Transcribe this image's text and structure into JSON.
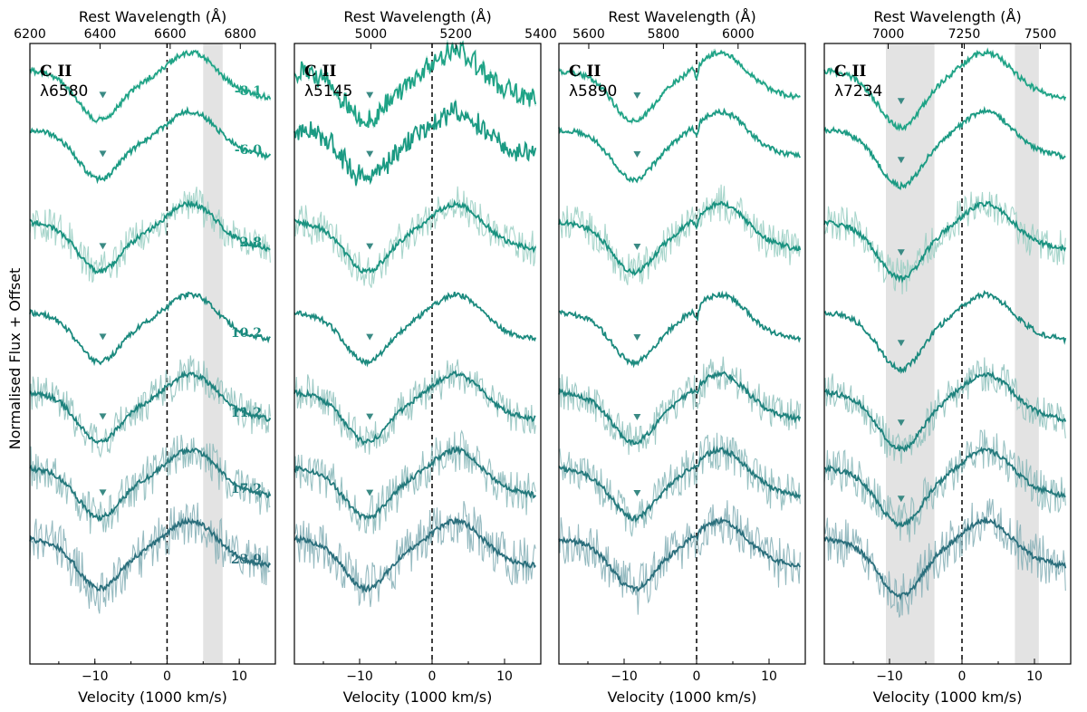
{
  "figure": {
    "ylabel": "Normalised Flux + Offset"
  },
  "chart_data": [
    {
      "type": "line",
      "ion": "C II",
      "line_label": "λ6580",
      "xlabel": "Velocity (1000 km/s)",
      "top_xlabel": "Rest Wavelength (Å)",
      "xlim": [
        -19,
        15
      ],
      "x_ticks": [
        -10,
        0,
        10
      ],
      "top_xlim": [
        6200,
        6900
      ],
      "top_ticks": [
        6200,
        6400,
        6600,
        6800
      ],
      "shade": [
        [
          5,
          7.7
        ]
      ],
      "trough_velocity": -9.5,
      "epochs": [
        "-8.1",
        "-6.0",
        "2.8",
        "10.2",
        "11.2",
        "17.2",
        "23.9"
      ]
    },
    {
      "type": "line",
      "ion": "C II",
      "line_label": "λ5145",
      "xlabel": "Velocity (1000 km/s)",
      "top_xlabel": "Rest Wavelength (Å)",
      "xlim": [
        -19,
        15
      ],
      "x_ticks": [
        -10,
        0,
        10
      ],
      "top_xlim": [
        4820,
        5400
      ],
      "top_ticks": [
        5000,
        5200,
        5400
      ],
      "shade": [],
      "trough_velocity": -9.2,
      "epochs": [
        "-8.1",
        "-6.0",
        "2.8",
        "10.2",
        "11.2",
        "17.2",
        "23.9"
      ]
    },
    {
      "type": "line",
      "ion": "C II",
      "line_label": "λ5890",
      "xlabel": "Velocity (1000 km/s)",
      "top_xlabel": "Rest Wavelength (Å)",
      "xlim": [
        -19,
        15
      ],
      "x_ticks": [
        -10,
        0,
        10
      ],
      "top_xlim": [
        5520,
        6180
      ],
      "top_ticks": [
        5600,
        5800,
        6000
      ],
      "shade": [],
      "trough_velocity": -8.8,
      "epochs": [
        "-8.1",
        "-6.0",
        "2.8",
        "10.2",
        "11.2",
        "17.2",
        "23.9"
      ]
    },
    {
      "type": "line",
      "ion": "C II",
      "line_label": "λ7234",
      "xlabel": "Velocity (1000 km/s)",
      "top_xlabel": "Rest Wavelength (Å)",
      "xlim": [
        -19,
        15
      ],
      "x_ticks": [
        -10,
        0,
        10
      ],
      "top_xlim": [
        6790,
        7600
      ],
      "top_ticks": [
        7000,
        7250,
        7500
      ],
      "shade": [
        [
          -10.5,
          -3.8
        ],
        [
          7.3,
          10.6
        ]
      ],
      "trough_velocity": -9.0,
      "epochs": [
        "-8.1",
        "-6.0",
        "2.8",
        "10.2",
        "11.2",
        "17.2",
        "23.9"
      ]
    }
  ],
  "colors": {
    "series": [
      "#1fa386",
      "#1b9a83",
      "#1a9280",
      "#1b8a7e",
      "#1e827d",
      "#24797c",
      "#2b6f7c"
    ],
    "noise": [
      "#a4d9cb",
      "#9fd4c6",
      "#98cec2",
      "#92c7be",
      "#8cbfbb",
      "#87b7b8",
      "#82aeb5"
    ],
    "shade": "#e3e3e3",
    "marker": "#3a8a84"
  }
}
